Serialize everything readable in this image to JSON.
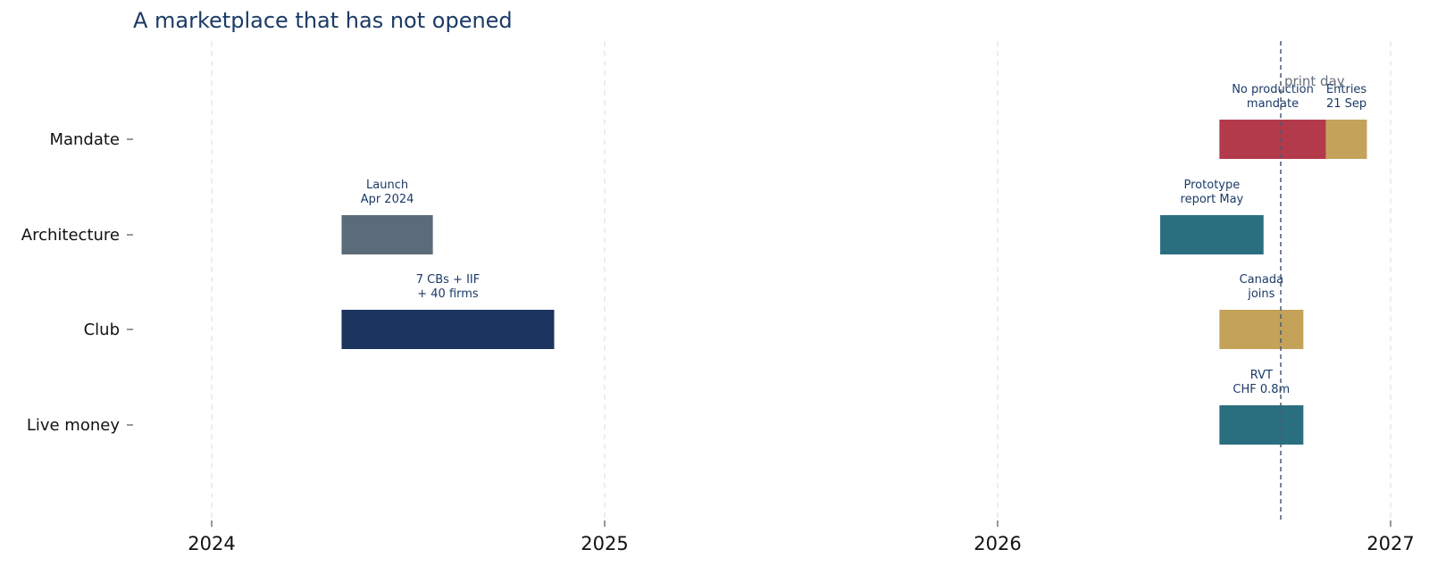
{
  "chart_data": {
    "type": "gantt",
    "title": "A marketplace that has not opened",
    "xlabel": "",
    "ylabel": "",
    "x_range": [
      "2023-10-01",
      "2027-01-01"
    ],
    "x_ticks": [
      {
        "date": "2024-01-01",
        "label": "2024"
      },
      {
        "date": "2025-01-01",
        "label": "2025"
      },
      {
        "date": "2026-01-01",
        "label": "2026"
      },
      {
        "date": "2027-01-01",
        "label": "2027"
      }
    ],
    "grid": "vertical dashed at year ticks",
    "categories": [
      "Mandate",
      "Architecture",
      "Club",
      "Live money"
    ],
    "bars": [
      {
        "category": "Mandate",
        "start": "2026-07-26",
        "end": "2026-11-02",
        "color": "#b33a4a",
        "annotation": [
          "No production",
          "mandate"
        ]
      },
      {
        "category": "Mandate",
        "start": "2026-11-02",
        "end": "2026-12-10",
        "color": "#c4a25a",
        "annotation": [
          "Entries",
          "21 Sep"
        ]
      },
      {
        "category": "Architecture",
        "start": "2024-05-01",
        "end": "2024-07-25",
        "color": "#5c6b7a",
        "annotation": [
          "Launch",
          "Apr 2024"
        ]
      },
      {
        "category": "Architecture",
        "start": "2026-06-01",
        "end": "2026-09-05",
        "color": "#2a6f80",
        "annotation": [
          "Prototype",
          "report May"
        ]
      },
      {
        "category": "Club",
        "start": "2024-05-01",
        "end": "2024-11-15",
        "color": "#1c355e",
        "annotation": [
          "7 CBs + IIF",
          "+ 40 firms"
        ]
      },
      {
        "category": "Club",
        "start": "2026-07-26",
        "end": "2026-10-12",
        "color": "#c4a25a",
        "annotation": [
          "Canada",
          "joins"
        ]
      },
      {
        "category": "Live money",
        "start": "2026-07-26",
        "end": "2026-10-12",
        "color": "#2a6f80",
        "annotation": [
          "RVT",
          "CHF 0.8m"
        ]
      }
    ],
    "reference_line": {
      "date": "2026-09-21",
      "label": "print day",
      "style": "dashed",
      "color": "#4a5a70"
    }
  }
}
